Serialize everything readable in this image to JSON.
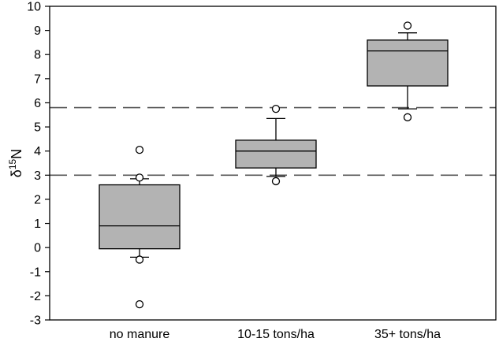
{
  "chart_data": {
    "type": "box",
    "title": "",
    "xlabel": "",
    "ylabel": {
      "symbol": "δ",
      "superscript": "15",
      "element": "N"
    },
    "ylim": [
      -3,
      10
    ],
    "yticks": [
      -3,
      -2,
      -1,
      0,
      1,
      2,
      3,
      4,
      5,
      6,
      7,
      8,
      9,
      10
    ],
    "categories": [
      "no manure",
      "10-15 tons/ha",
      "35+ tons/ha"
    ],
    "boxes": [
      {
        "category": "no manure",
        "whisker_low": -0.4,
        "q1": -0.05,
        "median": 0.9,
        "q3": 2.6,
        "whisker_high": 2.85,
        "outliers": [
          4.05,
          2.9,
          -0.5,
          -2.35
        ]
      },
      {
        "category": "10-15 tons/ha",
        "whisker_low": 2.95,
        "q1": 3.3,
        "median": 4.0,
        "q3": 4.45,
        "whisker_high": 5.35,
        "outliers": [
          5.75,
          2.75
        ]
      },
      {
        "category": "35+ tons/ha",
        "whisker_low": 5.75,
        "q1": 6.7,
        "median": 8.15,
        "q3": 8.6,
        "whisker_high": 8.9,
        "outliers": [
          9.2,
          5.4
        ]
      }
    ],
    "reference_lines": [
      {
        "y": 5.8,
        "style": "dashed"
      },
      {
        "y": 3.0,
        "style": "dashed"
      }
    ],
    "colors": {
      "box_fill": "#b3b3b3",
      "line": "#000000",
      "reference_line": "#555555",
      "background": "#ffffff"
    },
    "grid": false,
    "legend": "none"
  }
}
